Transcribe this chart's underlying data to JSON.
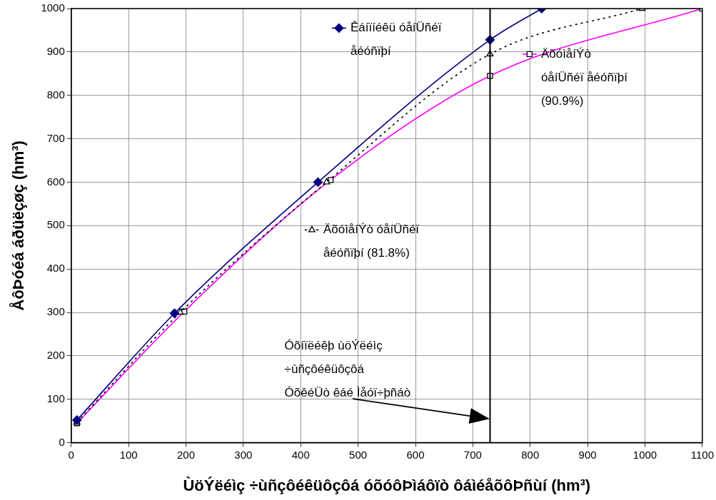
{
  "chart_data": {
    "type": "line",
    "xlabel": "ÙöÝëéìç ÷ùñçôéêüôçôá óõóôÞìáôïò ôáìéåõôÞñùí (hm³)",
    "ylabel": "ÅôÞóéá áðüëçøç (hm³)",
    "xlim": [
      0,
      1100
    ],
    "xticks": [
      0,
      100,
      200,
      300,
      400,
      500,
      600,
      700,
      800,
      900,
      1000,
      1100
    ],
    "ylim": [
      0,
      1000
    ],
    "yticks": [
      0,
      100,
      200,
      300,
      400,
      500,
      600,
      700,
      800,
      900,
      1000
    ],
    "grid": true,
    "legend": "top",
    "series": [
      {
        "name": "Êáíïíéêü óåíÜñéï åéóñïþí",
        "color": "#000080",
        "marker": "diamond",
        "line_style": "solid",
        "x": [
          10,
          180,
          430,
          730,
          820
        ],
        "values": [
          52,
          298,
          600,
          928,
          1000
        ]
      },
      {
        "name": "ÄõóìåíÝò óåíÜñéï åéóñïþí (81.8%)",
        "color": "#000000",
        "marker": "triangle",
        "line_style": "dotted",
        "x": [
          10,
          190,
          445,
          730,
          995
        ],
        "values": [
          47,
          300,
          600,
          895,
          1000
        ]
      },
      {
        "name": "ÄõóìåíÝò óåíÜñéï åéóñïþí (90.9%)",
        "color": "#ff00ff",
        "marker": "square",
        "line_style": "solid",
        "x": [
          10,
          197,
          452,
          730,
          1100
        ],
        "values": [
          45,
          302,
          605,
          845,
          1000
        ]
      }
    ],
    "ref_lines": [
      {
        "axis": "x",
        "value": 730,
        "color": "#000000"
      }
    ],
    "annotations": [
      "Óõíïëéêþ ùöÝëéìç\n÷ùñçôéêüôçôá\nÓõêéÜò êáé Ìåóï÷þñáò"
    ]
  }
}
